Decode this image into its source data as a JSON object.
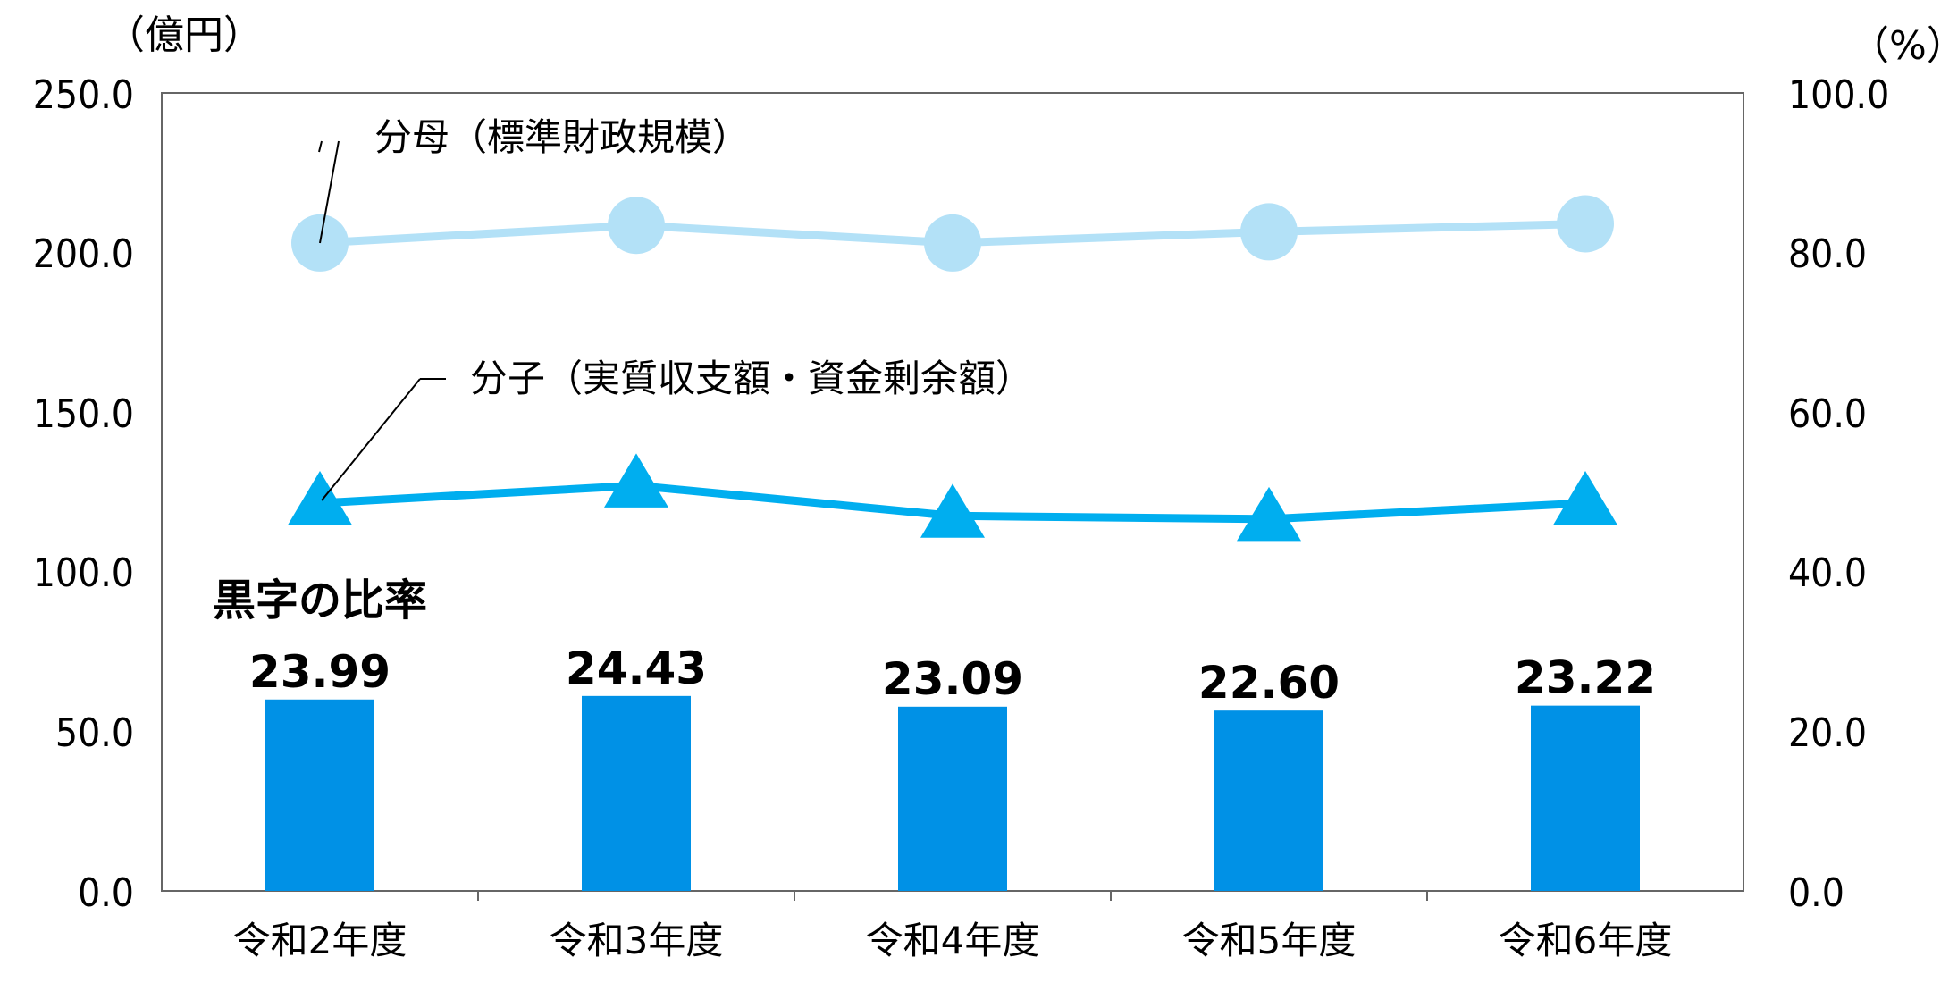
{
  "chart_data": {
    "type": "bar",
    "categories": [
      "令和2年度",
      "令和3年度",
      "令和4年度",
      "令和5年度",
      "令和6年度"
    ],
    "left_axis": {
      "unit_label": "（億円）",
      "range": [
        0,
        250
      ],
      "ticks": [
        "0.0",
        "50.0",
        "100.0",
        "150.0",
        "200.0",
        "250.0"
      ]
    },
    "right_axis": {
      "unit_label": "（%）",
      "range": [
        0,
        100
      ],
      "ticks": [
        "0.0",
        "20.0",
        "40.0",
        "60.0",
        "80.0",
        "100.0"
      ]
    },
    "series": [
      {
        "name": "黒字の比率",
        "type": "bar",
        "axis": "right",
        "color": "#0091e6",
        "values": [
          23.99,
          24.43,
          23.09,
          22.6,
          23.22
        ],
        "labels": [
          "23.99",
          "24.43",
          "23.09",
          "22.60",
          "23.22"
        ]
      },
      {
        "name": "分母（標準財政規模）",
        "type": "line",
        "marker": "circle",
        "axis": "left",
        "color": "#b3e1f7",
        "values": [
          203.0,
          208.5,
          203.0,
          206.5,
          209.0
        ]
      },
      {
        "name": "分子（実質収支額・資金剰余額）",
        "type": "line",
        "marker": "triangle",
        "axis": "left",
        "color": "#00aeef",
        "values": [
          121.5,
          127.0,
          117.5,
          116.5,
          121.5
        ]
      }
    ],
    "grid": false,
    "legend": "inline annotations"
  }
}
